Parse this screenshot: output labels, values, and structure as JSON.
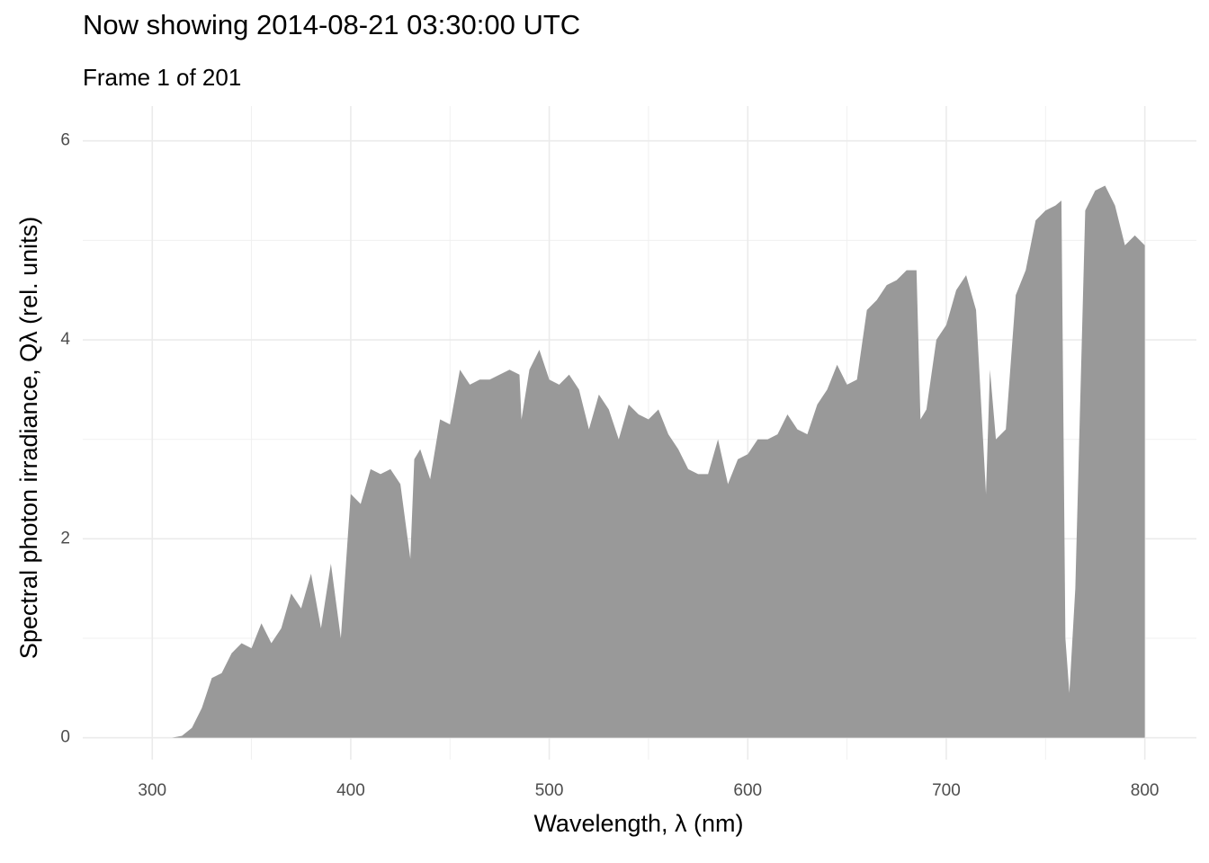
{
  "chart_data": {
    "type": "area",
    "title": "Now showing 2014-08-21 03:30:00 UTC",
    "subtitle": "Frame 1 of 201",
    "x_label": "Wavelength,  λ (nm)",
    "y_label": "Spectral photon irradiance,  Qλ  (rel. units)",
    "color": "#999999",
    "grid": true,
    "minor_grid": true,
    "xlim": [
      265,
      826
    ],
    "ylim": [
      -0.22,
      6.35
    ],
    "xticks": [
      300,
      400,
      500,
      600,
      700,
      800
    ],
    "yticks": [
      0,
      2,
      4,
      6
    ],
    "x": [
      300,
      305,
      310,
      315,
      320,
      325,
      330,
      335,
      340,
      345,
      350,
      355,
      360,
      365,
      370,
      375,
      380,
      385,
      390,
      395,
      400,
      405,
      410,
      415,
      420,
      425,
      430,
      432,
      435,
      440,
      445,
      450,
      455,
      460,
      465,
      470,
      475,
      480,
      485,
      486,
      490,
      495,
      500,
      505,
      510,
      515,
      520,
      525,
      530,
      535,
      540,
      545,
      550,
      555,
      560,
      565,
      570,
      575,
      580,
      585,
      590,
      595,
      600,
      605,
      610,
      615,
      620,
      625,
      630,
      635,
      640,
      645,
      650,
      655,
      660,
      665,
      670,
      675,
      680,
      685,
      687,
      690,
      695,
      700,
      705,
      710,
      715,
      720,
      722,
      725,
      730,
      735,
      740,
      745,
      750,
      755,
      758,
      760,
      762,
      765,
      770,
      775,
      780,
      785,
      790,
      795,
      800
    ],
    "values": [
      0,
      0,
      0,
      0.02,
      0.1,
      0.3,
      0.6,
      0.65,
      0.85,
      0.95,
      0.9,
      1.15,
      0.95,
      1.1,
      1.45,
      1.3,
      1.65,
      1.1,
      1.75,
      1.0,
      2.45,
      2.35,
      2.7,
      2.65,
      2.7,
      2.55,
      1.8,
      2.8,
      2.9,
      2.6,
      3.2,
      3.15,
      3.7,
      3.55,
      3.6,
      3.6,
      3.65,
      3.7,
      3.65,
      3.2,
      3.7,
      3.9,
      3.6,
      3.55,
      3.65,
      3.5,
      3.1,
      3.45,
      3.3,
      3.0,
      3.35,
      3.25,
      3.2,
      3.3,
      3.05,
      2.9,
      2.7,
      2.65,
      2.65,
      3.0,
      2.55,
      2.8,
      2.85,
      3.0,
      3.0,
      3.05,
      3.25,
      3.1,
      3.05,
      3.35,
      3.5,
      3.75,
      3.55,
      3.6,
      4.3,
      4.4,
      4.55,
      4.6,
      4.7,
      4.7,
      3.2,
      3.3,
      4.0,
      4.15,
      4.5,
      4.65,
      4.3,
      2.45,
      3.7,
      3.0,
      3.1,
      4.45,
      4.7,
      5.2,
      5.3,
      5.35,
      5.4,
      1.0,
      0.45,
      1.5,
      5.3,
      5.5,
      5.55,
      5.35,
      4.95,
      5.05,
      4.95
    ]
  }
}
